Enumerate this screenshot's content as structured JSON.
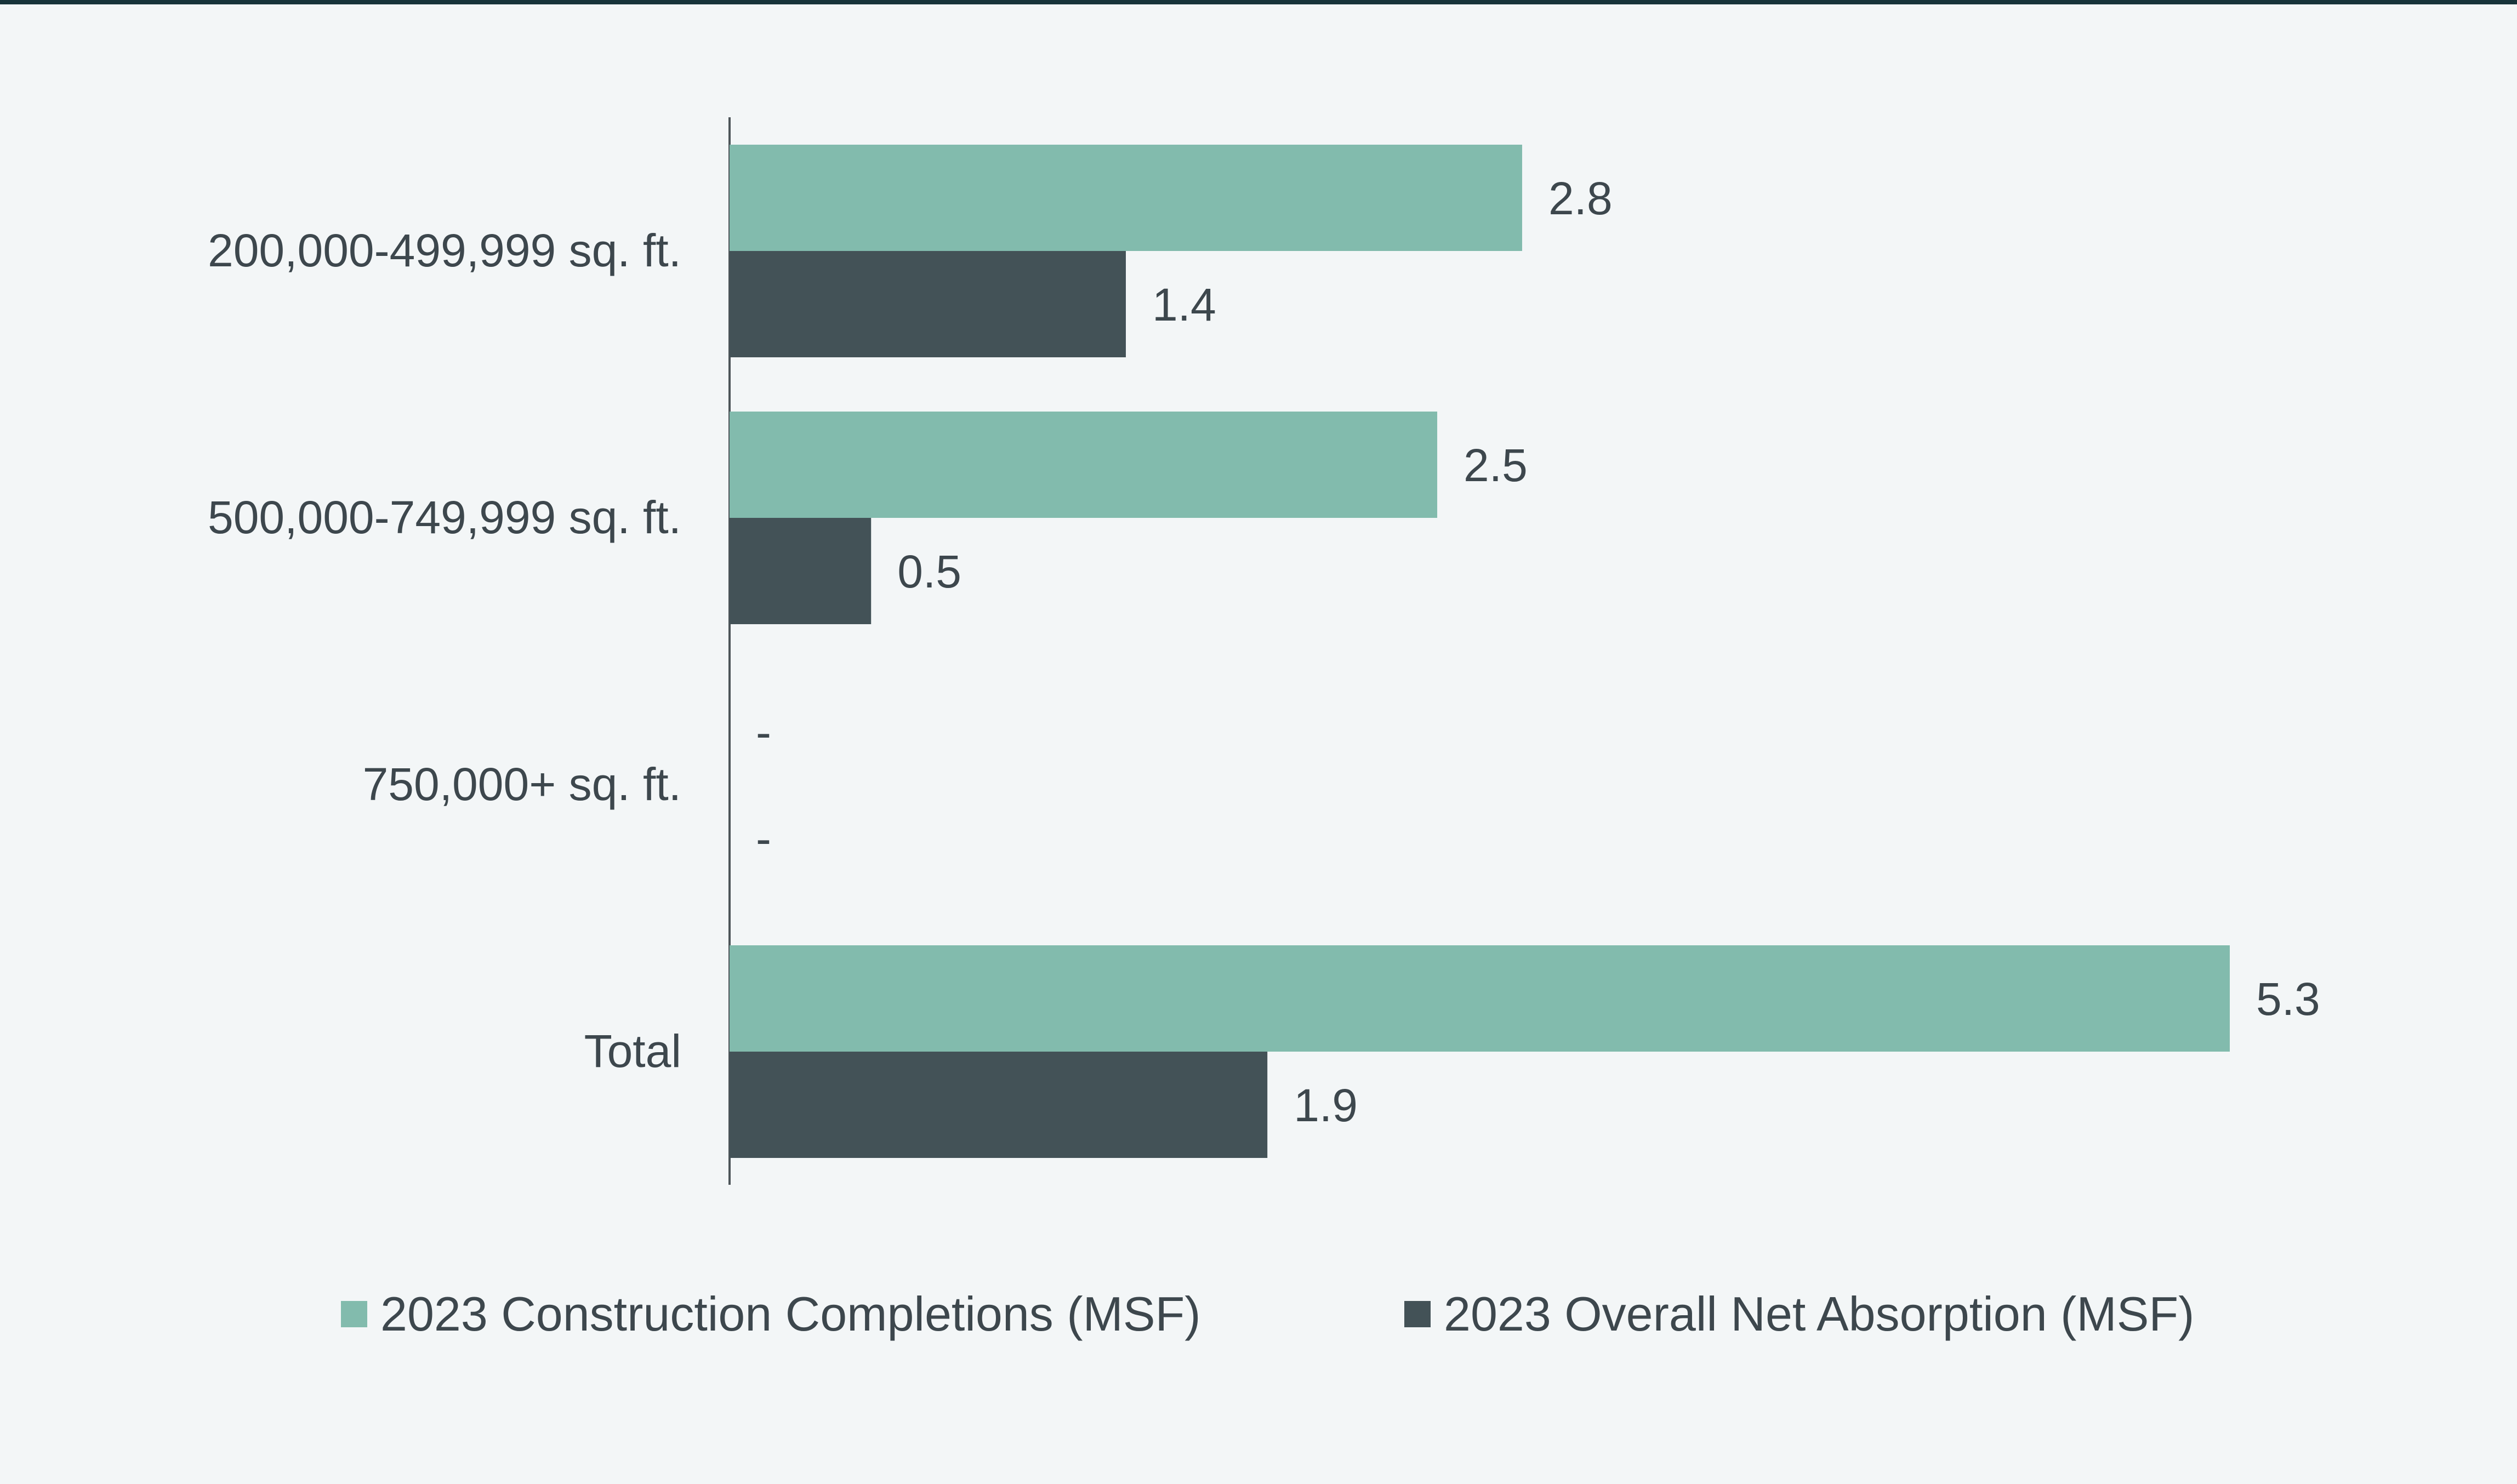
{
  "chart_data": {
    "type": "bar",
    "orientation": "horizontal",
    "categories": [
      "200,000-499,999 sq. ft.",
      "500,000-749,999 sq. ft.",
      "750,000+ sq. ft.",
      "Total"
    ],
    "series": [
      {
        "name": "2023 Construction Completions (MSF)",
        "values": [
          2.8,
          2.5,
          null,
          5.3
        ],
        "labels": [
          "2.8",
          "2.5",
          "-",
          "5.3"
        ],
        "color": "#82bbad"
      },
      {
        "name": "2023 Overall Net Absorption (MSF)",
        "values": [
          1.4,
          0.5,
          null,
          1.9
        ],
        "labels": [
          "1.4",
          "0.5",
          "-",
          "1.9"
        ],
        "color": "#435257"
      }
    ],
    "xlim": [
      0,
      5.3
    ],
    "grid": false,
    "legend_position": "bottom",
    "colors": {
      "background": "#f3f6f7",
      "top_rule": "#17333a",
      "axis": "#4d5559",
      "text": "#3d474d"
    }
  }
}
